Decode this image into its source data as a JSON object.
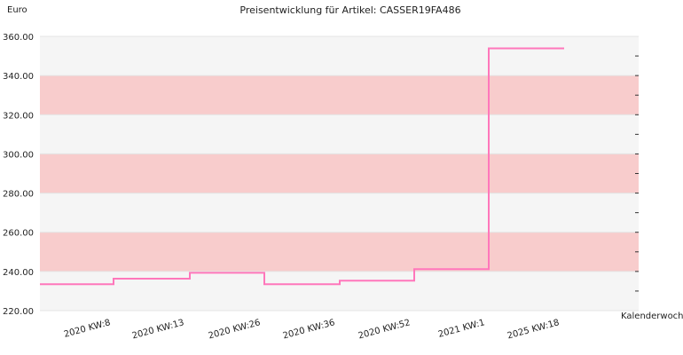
{
  "chart_data": {
    "type": "line",
    "step": true,
    "title": "Preisentwicklung für Artikel: CASSER19FA486",
    "ylabel": "Euro",
    "xlabel": "Kalenderwoche",
    "ylim": [
      220,
      360
    ],
    "yticks": [
      "220.00",
      "240.00",
      "260.00",
      "280.00",
      "300.00",
      "320.00",
      "340.00",
      "360.00"
    ],
    "xtick_labels": [
      "2020 KW:8",
      "2020 KW:13",
      "2020 KW:26",
      "2020 KW:36",
      "2020 KW:52",
      "2021 KW:1",
      "2025 KW:18"
    ],
    "series": [
      {
        "color": "#ff77bb",
        "segments": [
          {
            "from": "2020 KW:8",
            "to": "2020 KW:13",
            "value": 233.5
          },
          {
            "from": "2020 KW:13",
            "to": "2020 KW:26",
            "value": 236.3
          },
          {
            "from": "2020 KW:26",
            "to": "2020 KW:36",
            "value": 239.3
          },
          {
            "from": "2020 KW:36",
            "to": "2020 KW:52",
            "value": 233.5
          },
          {
            "from": "2020 KW:52",
            "to": "2021 KW:1",
            "value": 235.3
          },
          {
            "from": "2021 KW:1",
            "to": "2025 KW:18",
            "value": 241.2
          },
          {
            "from": "2025 KW:18",
            "to": "",
            "value": 353.9
          }
        ]
      }
    ],
    "bands": {
      "colors": [
        "#f5f5f5",
        "#f8cccc"
      ],
      "step": 20
    },
    "grid": true
  }
}
